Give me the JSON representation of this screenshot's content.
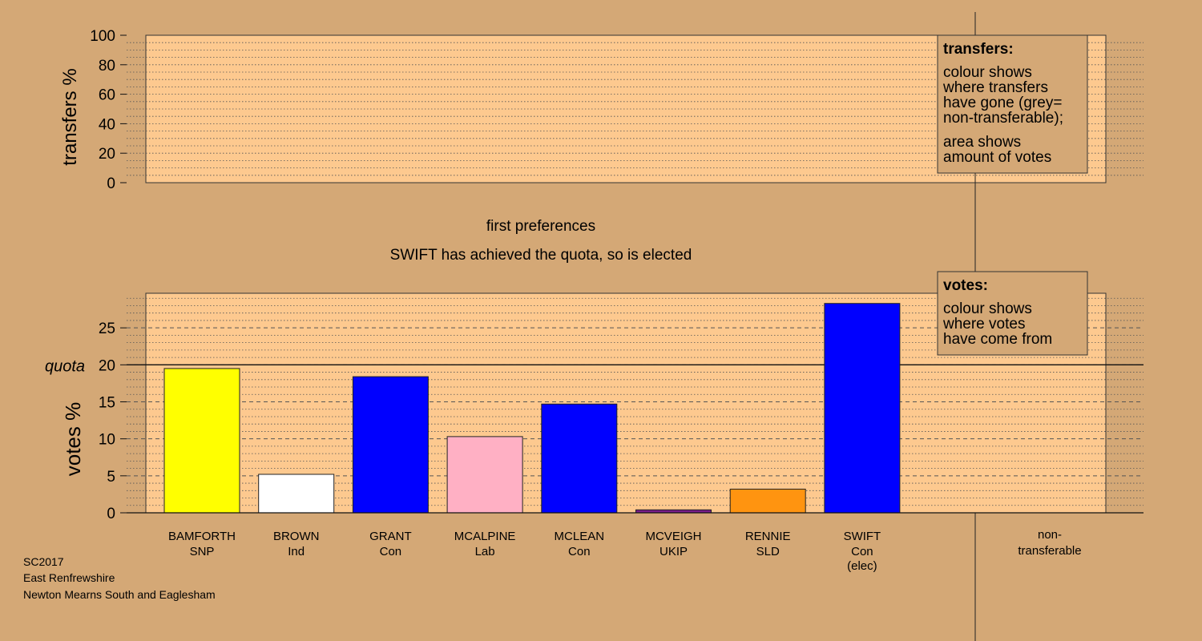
{
  "colors": {
    "background": "#d4a876",
    "plot_fill": "#fdc98f",
    "SNP": "#ffff00",
    "Ind": "#ffffff",
    "Con": "#0000ff",
    "Lab": "#ffb0c4",
    "UKIP": "#7a1f8a",
    "SLD": "#ff9410",
    "legend_fill": "#d4a876"
  },
  "titles": {
    "stage": "first preferences",
    "status": "SWIFT has achieved the quota, so is elected"
  },
  "legends": {
    "transfers": {
      "heading": "transfers:",
      "line1": "colour shows",
      "line2": "where transfers",
      "line3": "have gone (grey=",
      "line4": "non-transferable);",
      "line5": "area shows",
      "line6": "amount of votes"
    },
    "votes": {
      "heading": "votes:",
      "line1": "colour shows",
      "line2": "where votes",
      "line3": "have come from"
    }
  },
  "footer": {
    "line1": "SC2017",
    "line2": "East Renfrewshire",
    "line3": "Newton Mearns South and Eaglesham"
  },
  "chart_data": [
    {
      "type": "bar",
      "ylabel": "transfers %",
      "ylim": [
        0,
        100
      ],
      "yticks": [
        "0",
        "20",
        "40",
        "60",
        "80",
        "100"
      ],
      "series": []
    },
    {
      "type": "bar",
      "ylabel": "votes %",
      "ylim": [
        0,
        30
      ],
      "yticks": [
        "0",
        "5",
        "10",
        "15",
        "20",
        "25"
      ],
      "quota": 20,
      "quota_label": "quota",
      "categories": [
        {
          "name": "BAMFORTH",
          "party": "SNP",
          "party_label": "SNP",
          "extra": "",
          "value": 19.5
        },
        {
          "name": "BROWN",
          "party": "Ind",
          "party_label": "Ind",
          "extra": "",
          "value": 5.2
        },
        {
          "name": "GRANT",
          "party": "Con",
          "party_label": "Con",
          "extra": "",
          "value": 18.4
        },
        {
          "name": "MCALPINE",
          "party": "Lab",
          "party_label": "Lab",
          "extra": "",
          "value": 10.3
        },
        {
          "name": "MCLEAN",
          "party": "Con",
          "party_label": "Con",
          "extra": "",
          "value": 14.7
        },
        {
          "name": "MCVEIGH",
          "party": "UKIP",
          "party_label": "UKIP",
          "extra": "",
          "value": 0.4
        },
        {
          "name": "RENNIE",
          "party": "SLD",
          "party_label": "SLD",
          "extra": "",
          "value": 3.2
        },
        {
          "name": "SWIFT",
          "party": "Con",
          "party_label": "Con",
          "extra": "(elec)",
          "value": 28.3
        }
      ],
      "non_transferable_label_1": "non-",
      "non_transferable_label_2": "transferable"
    }
  ]
}
